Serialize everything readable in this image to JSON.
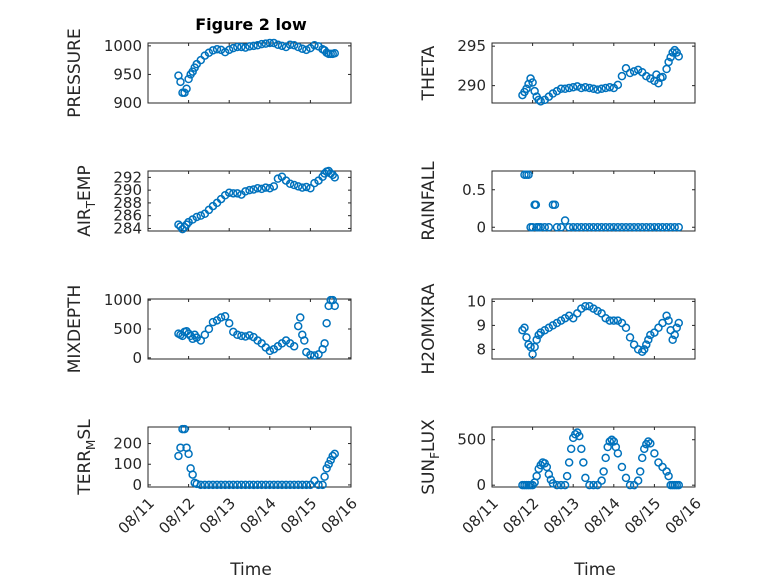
{
  "title": "Figure 2 low",
  "x_ticks": [
    "08/11",
    "08/12",
    "08/13",
    "08/14",
    "08/15",
    "08/16"
  ],
  "x_label": "Time",
  "colors": {
    "marker": "#0072BD",
    "axes": "#262626"
  },
  "chart_data": [
    {
      "type": "scatter",
      "ylabel": "PRESSURE",
      "ylim": [
        900,
        1005
      ],
      "yticks": [
        900,
        950,
        1000
      ],
      "xlim": [
        11,
        16
      ],
      "grid": true,
      "x": [
        11.75,
        11.8,
        11.85,
        11.9,
        11.95,
        12.0,
        12.05,
        12.1,
        12.15,
        12.2,
        12.3,
        12.4,
        12.5,
        12.6,
        12.7,
        12.8,
        12.9,
        13.0,
        13.1,
        13.2,
        13.3,
        13.4,
        13.5,
        13.6,
        13.7,
        13.8,
        13.9,
        14.0,
        14.1,
        14.2,
        14.3,
        14.4,
        14.5,
        14.6,
        14.7,
        14.8,
        14.9,
        15.0,
        15.1,
        15.2,
        15.3,
        15.35,
        15.4,
        15.45,
        15.5,
        15.55,
        15.6
      ],
      "y": [
        948,
        937,
        918,
        918,
        925,
        942,
        950,
        955,
        962,
        968,
        975,
        983,
        988,
        992,
        994,
        993,
        989,
        993,
        996,
        998,
        998,
        997,
        999,
        1000,
        1001,
        1003,
        1004,
        1005,
        1005,
        1002,
        1000,
        998,
        1002,
        1001,
        998,
        995,
        993,
        996,
        1001,
        999,
        994,
        992,
        988,
        986,
        986,
        986,
        987
      ]
    },
    {
      "type": "scatter",
      "ylabel": "THETA",
      "ylim": [
        287.8,
        295.4
      ],
      "yticks": [
        290,
        295
      ],
      "xlim": [
        11,
        16
      ],
      "grid": true,
      "x": [
        11.75,
        11.8,
        11.85,
        11.9,
        11.95,
        12.0,
        12.05,
        12.1,
        12.15,
        12.2,
        12.3,
        12.4,
        12.5,
        12.6,
        12.7,
        12.8,
        12.9,
        13.0,
        13.1,
        13.2,
        13.3,
        13.4,
        13.5,
        13.6,
        13.7,
        13.8,
        13.9,
        14.0,
        14.1,
        14.2,
        14.3,
        14.4,
        14.5,
        14.6,
        14.7,
        14.8,
        14.9,
        15.0,
        15.05,
        15.1,
        15.15,
        15.2,
        15.3,
        15.35,
        15.4,
        15.45,
        15.5,
        15.55,
        15.6
      ],
      "y": [
        288.8,
        289.2,
        289.6,
        290.2,
        290.9,
        290.4,
        289.3,
        288.6,
        288.2,
        288.0,
        288.2,
        288.6,
        289.0,
        289.3,
        289.6,
        289.6,
        289.7,
        289.8,
        289.9,
        289.7,
        289.8,
        289.7,
        289.6,
        289.5,
        289.6,
        289.7,
        289.8,
        289.7,
        290.1,
        291.2,
        292.2,
        291.6,
        291.8,
        292.0,
        291.7,
        291.2,
        290.9,
        290.6,
        291.4,
        290.3,
        291.0,
        291.1,
        292.1,
        293.0,
        293.6,
        294.2,
        294.5,
        294.2,
        293.7
      ]
    },
    {
      "type": "scatter",
      "ylabel": "AIR_TEMP",
      "ylim": [
        283.6,
        293
      ],
      "yticks": [
        284,
        286,
        288,
        290,
        292
      ],
      "xlim": [
        11,
        16
      ],
      "grid": true,
      "x": [
        11.75,
        11.8,
        11.85,
        11.9,
        11.95,
        12.0,
        12.1,
        12.2,
        12.3,
        12.4,
        12.5,
        12.6,
        12.7,
        12.8,
        12.9,
        13.0,
        13.1,
        13.2,
        13.3,
        13.4,
        13.5,
        13.6,
        13.7,
        13.8,
        13.9,
        14.0,
        14.1,
        14.2,
        14.3,
        14.4,
        14.5,
        14.6,
        14.7,
        14.8,
        14.9,
        15.0,
        15.1,
        15.2,
        15.3,
        15.35,
        15.4,
        15.45,
        15.5,
        15.55,
        15.6
      ],
      "y": [
        284.6,
        284.3,
        283.9,
        284.2,
        284.6,
        285.0,
        285.4,
        285.8,
        286.0,
        286.3,
        286.9,
        287.5,
        288.0,
        288.6,
        289.2,
        289.6,
        289.5,
        289.5,
        289.3,
        289.8,
        290.0,
        290.1,
        290.3,
        290.2,
        290.4,
        290.3,
        290.6,
        291.8,
        292.1,
        291.5,
        291.0,
        290.8,
        290.6,
        290.4,
        290.5,
        290.3,
        291.1,
        291.5,
        292.1,
        292.6,
        292.9,
        293.0,
        292.6,
        292.4,
        292.0
      ]
    },
    {
      "type": "scatter",
      "ylabel": "RAINFALL",
      "ylim": [
        -0.05,
        0.75
      ],
      "yticks": [
        0,
        0.5
      ],
      "xlim": [
        11,
        16
      ],
      "grid": true,
      "x": [
        11.8,
        11.85,
        11.9,
        11.95,
        12.0,
        12.05,
        12.08,
        12.1,
        12.15,
        12.2,
        12.3,
        12.4,
        12.5,
        12.55,
        12.6,
        12.7,
        12.8,
        12.9,
        13.0,
        13.1,
        13.2,
        13.3,
        13.4,
        13.5,
        13.6,
        13.7,
        13.8,
        13.9,
        14.0,
        14.1,
        14.2,
        14.3,
        14.4,
        14.5,
        14.6,
        14.7,
        14.8,
        14.9,
        15.0,
        15.1,
        15.2,
        15.3,
        15.4,
        15.5,
        15.6
      ],
      "y": [
        0.7,
        0.7,
        0.7,
        0.0,
        0.0,
        0.3,
        0.3,
        0.0,
        0.0,
        0.0,
        0.0,
        0.0,
        0.3,
        0.3,
        0.0,
        0.0,
        0.09,
        0.0,
        0.0,
        0.0,
        0.0,
        0.0,
        0.0,
        0.0,
        0.0,
        0.0,
        0.0,
        0.0,
        0.0,
        0.0,
        0.0,
        0.0,
        0.0,
        0.0,
        0.0,
        0.0,
        0.0,
        0.0,
        0.0,
        0.0,
        0.0,
        0.0,
        0.0,
        0.0,
        0.0
      ]
    },
    {
      "type": "scatter",
      "ylabel": "MIXDEPTH",
      "ylim": [
        -20,
        1020
      ],
      "yticks": [
        0,
        500,
        1000
      ],
      "xlim": [
        11,
        16
      ],
      "grid": true,
      "x": [
        11.75,
        11.8,
        11.85,
        11.9,
        11.95,
        12.0,
        12.05,
        12.1,
        12.15,
        12.2,
        12.3,
        12.4,
        12.5,
        12.6,
        12.7,
        12.8,
        12.9,
        13.0,
        13.1,
        13.2,
        13.3,
        13.4,
        13.5,
        13.6,
        13.7,
        13.8,
        13.9,
        14.0,
        14.1,
        14.2,
        14.3,
        14.4,
        14.5,
        14.6,
        14.7,
        14.75,
        14.8,
        14.85,
        14.9,
        15.0,
        15.1,
        15.2,
        15.3,
        15.35,
        15.4,
        15.45,
        15.5,
        15.55,
        15.6
      ],
      "y": [
        420,
        400,
        380,
        450,
        460,
        420,
        380,
        330,
        400,
        350,
        300,
        400,
        500,
        620,
        650,
        700,
        720,
        600,
        450,
        400,
        380,
        370,
        390,
        360,
        300,
        250,
        180,
        120,
        150,
        200,
        250,
        300,
        250,
        200,
        550,
        700,
        400,
        300,
        100,
        50,
        40,
        60,
        150,
        250,
        600,
        900,
        1000,
        1000,
        900
      ]
    },
    {
      "type": "scatter",
      "ylabel": "H2OMIXRA",
      "ylim": [
        7.6,
        10.1
      ],
      "yticks": [
        8,
        9,
        10
      ],
      "xlim": [
        11,
        16
      ],
      "grid": true,
      "x": [
        11.75,
        11.8,
        11.85,
        11.9,
        11.95,
        12.0,
        12.05,
        12.1,
        12.15,
        12.2,
        12.3,
        12.4,
        12.5,
        12.6,
        12.7,
        12.8,
        12.9,
        13.0,
        13.1,
        13.2,
        13.3,
        13.4,
        13.5,
        13.6,
        13.7,
        13.8,
        13.9,
        14.0,
        14.1,
        14.2,
        14.3,
        14.4,
        14.5,
        14.6,
        14.7,
        14.75,
        14.8,
        14.85,
        14.9,
        15.0,
        15.1,
        15.2,
        15.3,
        15.35,
        15.4,
        15.45,
        15.5,
        15.55,
        15.6
      ],
      "y": [
        8.8,
        8.9,
        8.5,
        8.2,
        8.1,
        7.8,
        8.1,
        8.4,
        8.6,
        8.7,
        8.8,
        8.9,
        9.0,
        9.1,
        9.2,
        9.3,
        9.4,
        9.3,
        9.5,
        9.7,
        9.8,
        9.8,
        9.7,
        9.6,
        9.5,
        9.3,
        9.2,
        9.2,
        9.2,
        9.1,
        8.9,
        8.5,
        8.2,
        8.0,
        7.9,
        8.0,
        8.2,
        8.4,
        8.6,
        8.7,
        8.9,
        9.1,
        9.4,
        9.2,
        8.8,
        8.4,
        8.6,
        8.9,
        9.1
      ]
    },
    {
      "type": "scatter",
      "ylabel": "TERR_MSL",
      "ylim": [
        -10,
        280
      ],
      "yticks": [
        0,
        100,
        200
      ],
      "xlim": [
        11,
        16
      ],
      "grid": true,
      "x": [
        11.75,
        11.8,
        11.85,
        11.9,
        11.95,
        12.0,
        12.05,
        12.1,
        12.15,
        12.2,
        12.3,
        12.4,
        12.5,
        12.6,
        12.7,
        12.8,
        12.9,
        13.0,
        13.1,
        13.2,
        13.3,
        13.4,
        13.5,
        13.6,
        13.7,
        13.8,
        13.9,
        14.0,
        14.1,
        14.2,
        14.3,
        14.4,
        14.5,
        14.6,
        14.7,
        14.8,
        14.9,
        15.0,
        15.1,
        15.2,
        15.3,
        15.35,
        15.4,
        15.45,
        15.5,
        15.55,
        15.6
      ],
      "y": [
        140,
        180,
        270,
        270,
        180,
        150,
        80,
        50,
        10,
        5,
        0,
        0,
        0,
        0,
        0,
        0,
        0,
        0,
        0,
        0,
        0,
        0,
        0,
        0,
        0,
        0,
        0,
        0,
        0,
        0,
        0,
        0,
        0,
        0,
        0,
        0,
        0,
        0,
        20,
        0,
        0,
        40,
        80,
        100,
        120,
        140,
        150
      ]
    },
    {
      "type": "scatter",
      "ylabel": "SUN_FLUX",
      "ylim": [
        -20,
        640
      ],
      "yticks": [
        0,
        500
      ],
      "xlim": [
        11,
        16
      ],
      "grid": true,
      "x": [
        11.75,
        11.8,
        11.85,
        11.9,
        11.95,
        12.0,
        12.05,
        12.1,
        12.15,
        12.2,
        12.25,
        12.3,
        12.35,
        12.4,
        12.45,
        12.5,
        12.6,
        12.7,
        12.8,
        12.85,
        12.9,
        12.95,
        13.0,
        13.05,
        13.1,
        13.15,
        13.2,
        13.25,
        13.3,
        13.4,
        13.5,
        13.6,
        13.7,
        13.75,
        13.8,
        13.85,
        13.9,
        13.95,
        14.0,
        14.05,
        14.1,
        14.2,
        14.3,
        14.4,
        14.5,
        14.6,
        14.65,
        14.7,
        14.75,
        14.8,
        14.85,
        14.9,
        15.0,
        15.1,
        15.2,
        15.3,
        15.35,
        15.4,
        15.45,
        15.5,
        15.55,
        15.6
      ],
      "y": [
        0,
        0,
        0,
        0,
        0,
        0,
        30,
        100,
        180,
        220,
        250,
        240,
        200,
        120,
        60,
        20,
        0,
        0,
        0,
        100,
        250,
        400,
        520,
        560,
        580,
        540,
        400,
        250,
        80,
        0,
        0,
        0,
        50,
        150,
        300,
        420,
        480,
        500,
        480,
        420,
        350,
        200,
        80,
        0,
        0,
        50,
        150,
        300,
        400,
        450,
        480,
        460,
        350,
        250,
        200,
        150,
        100,
        0,
        0,
        0,
        0,
        0
      ]
    }
  ]
}
